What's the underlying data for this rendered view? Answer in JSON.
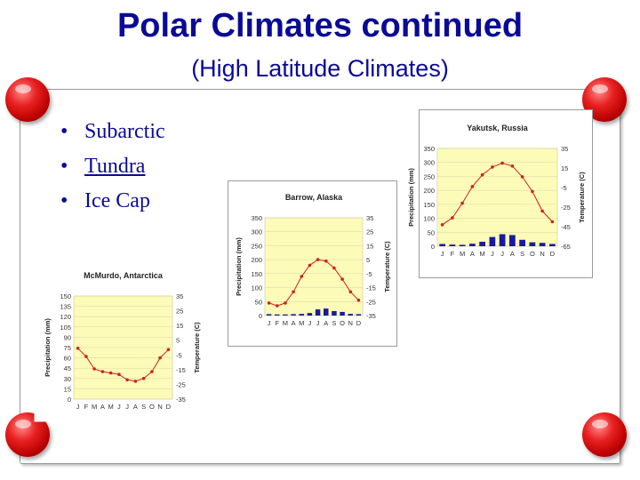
{
  "slide": {
    "title": "Polar Climates continued",
    "subtitle": "(High Latitude Climates)",
    "bullets": [
      {
        "bullet": "•",
        "text": "Subarctic",
        "link": false
      },
      {
        "bullet": "•",
        "text": "Tundra",
        "link": true
      },
      {
        "bullet": "•",
        "text": "Ice Cap",
        "link": false
      }
    ]
  },
  "colors": {
    "title": "#0a0a96",
    "knob": "#d81010",
    "plot_bg": "#fdfbb8",
    "temperature_line": "#cc2222",
    "precipitation_bars": "#1a1a9a"
  },
  "chart_data": [
    {
      "type": "bar",
      "title": "Yakutsk, Russia",
      "ylabel": "Precipitation (mm)",
      "y2label": "Temperature (C)",
      "categories": [
        "J",
        "F",
        "M",
        "A",
        "M",
        "J",
        "J",
        "A",
        "S",
        "O",
        "N",
        "D"
      ],
      "ylim": [
        0,
        350
      ],
      "y_ticks": [
        "350",
        "300",
        "250",
        "200",
        "150",
        "100",
        "50",
        "0"
      ],
      "y2lim": [
        -65,
        35
      ],
      "y2_ticks": [
        "35",
        "15",
        "-5",
        "-25",
        "-45",
        "-65"
      ],
      "grid": true,
      "series": [
        {
          "name": "",
          "kind": "bar",
          "axis": "precipitation",
          "values": [
            8,
            6,
            5,
            9,
            16,
            33,
            43,
            40,
            23,
            14,
            12,
            8
          ]
        },
        {
          "name": "",
          "kind": "line",
          "axis": "temperature",
          "values": [
            -43,
            -36,
            -21,
            -4,
            8,
            16,
            20,
            17,
            6,
            -9,
            -29,
            -40
          ]
        }
      ]
    },
    {
      "type": "bar",
      "title": "Barrow, Alaska",
      "ylabel": "Precipitation (mm)",
      "y2label": "Temperature (C)",
      "categories": [
        "J",
        "F",
        "M",
        "A",
        "M",
        "J",
        "J",
        "A",
        "S",
        "O",
        "N",
        "D"
      ],
      "ylim": [
        0,
        350
      ],
      "y_ticks": [
        "350",
        "300",
        "250",
        "200",
        "150",
        "100",
        "50",
        "0"
      ],
      "y2lim": [
        -35,
        35
      ],
      "y2_ticks": [
        "35",
        "25",
        "15",
        "5",
        "-5",
        "-15",
        "-25",
        "-35"
      ],
      "grid": true,
      "series": [
        {
          "name": "",
          "kind": "bar",
          "axis": "precipitation",
          "values": [
            5,
            4,
            4,
            5,
            6,
            9,
            22,
            25,
            16,
            13,
            6,
            5
          ]
        },
        {
          "name": "",
          "kind": "line",
          "axis": "temperature",
          "values": [
            -26,
            -28,
            -26,
            -18,
            -7,
            1,
            5,
            4,
            -1,
            -9,
            -18,
            -24
          ]
        }
      ]
    },
    {
      "type": "bar",
      "title": "McMurdo, Antarctica",
      "ylabel": "Precipitation (mm)",
      "y2label": "Temperature (C)",
      "categories": [
        "J",
        "F",
        "M",
        "A",
        "M",
        "J",
        "J",
        "A",
        "S",
        "O",
        "N",
        "D"
      ],
      "ylim": [
        0,
        150
      ],
      "y_ticks": [
        "150",
        "135",
        "120",
        "105",
        "90",
        "75",
        "60",
        "45",
        "30",
        "15",
        "0"
      ],
      "y2lim": [
        -40,
        35
      ],
      "y2_ticks": [
        "35",
        "25",
        "15",
        "5",
        "-5",
        "-15",
        "-25",
        "-35"
      ],
      "grid": true,
      "series": [
        {
          "name": "",
          "kind": "bar",
          "axis": "precipitation",
          "values": [
            0,
            0,
            0,
            0,
            0,
            0,
            0,
            0,
            0,
            0,
            0,
            0
          ]
        },
        {
          "name": "",
          "kind": "line",
          "axis": "temperature",
          "values": [
            -3,
            -9,
            -18,
            -20,
            -21,
            -22,
            -26,
            -27,
            -25,
            -20,
            -10,
            -4
          ]
        }
      ]
    }
  ]
}
